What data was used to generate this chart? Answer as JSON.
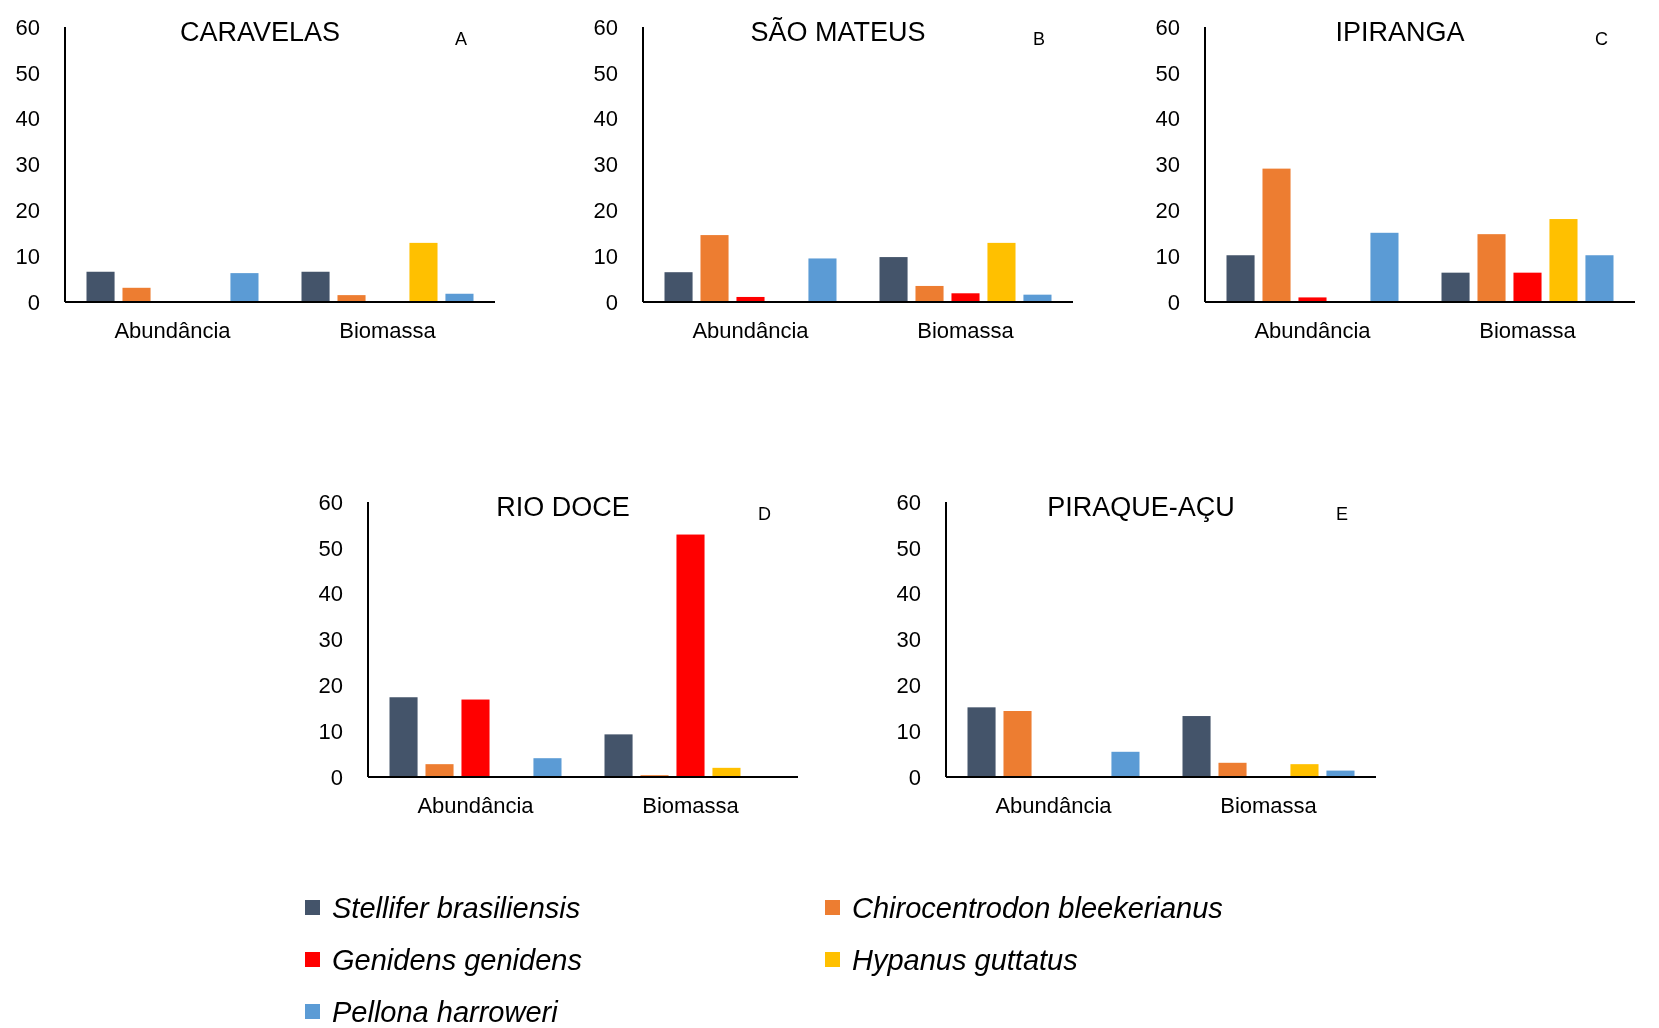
{
  "chart_data": [
    {
      "type": "bar",
      "title": "CARAVELAS",
      "annotations": [
        "A"
      ],
      "categories": [
        "Abundância",
        "Biomassa"
      ],
      "ylim": [
        0,
        60
      ],
      "yticks": [
        0,
        10,
        20,
        30,
        40,
        50,
        60
      ],
      "legend": "bottom",
      "series": [
        {
          "name": "Stellifer brasiliensis",
          "color": "#44546a",
          "values": [
            6.6,
            6.6
          ]
        },
        {
          "name": "Chirocentrodon bleekerianus",
          "color": "#ed7d31",
          "values": [
            3.1,
            1.5
          ]
        },
        {
          "name": "Genidens genidens",
          "color": "#ff0000",
          "values": [
            0,
            0
          ]
        },
        {
          "name": "Hypanus guttatus",
          "color": "#ffc000",
          "values": [
            0,
            12.9
          ]
        },
        {
          "name": "Pellona harroweri",
          "color": "#5b9bd5",
          "values": [
            6.3,
            1.8
          ]
        }
      ]
    },
    {
      "type": "bar",
      "title": "SÃO MATEUS",
      "annotations": [
        "B"
      ],
      "categories": [
        "Abundância",
        "Biomassa"
      ],
      "ylim": [
        0,
        60
      ],
      "yticks": [
        0,
        10,
        20,
        30,
        40,
        50,
        60
      ],
      "series": [
        {
          "color": "#44546a",
          "values": [
            6.5,
            9.8
          ]
        },
        {
          "color": "#ed7d31",
          "values": [
            14.6,
            3.5
          ]
        },
        {
          "color": "#ff0000",
          "values": [
            1.1,
            1.9
          ]
        },
        {
          "color": "#ffc000",
          "values": [
            0,
            12.9
          ]
        },
        {
          "color": "#5b9bd5",
          "values": [
            9.5,
            1.6
          ]
        }
      ]
    },
    {
      "type": "bar",
      "title": "IPIRANGA",
      "annotations": [
        "C"
      ],
      "categories": [
        "Abundância",
        "Biomassa"
      ],
      "ylim": [
        0,
        60
      ],
      "yticks": [
        0,
        10,
        20,
        30,
        40,
        50,
        60
      ],
      "series": [
        {
          "color": "#44546a",
          "values": [
            10.2,
            6.4
          ]
        },
        {
          "color": "#ed7d31",
          "values": [
            29.1,
            14.8
          ]
        },
        {
          "color": "#ff0000",
          "values": [
            1.0,
            6.4
          ]
        },
        {
          "color": "#ffc000",
          "values": [
            0,
            18.1
          ]
        },
        {
          "color": "#5b9bd5",
          "values": [
            15.1,
            10.2
          ]
        }
      ]
    },
    {
      "type": "bar",
      "title": "RIO DOCE",
      "annotations": [
        "D"
      ],
      "categories": [
        "Abundância",
        "Biomassa"
      ],
      "ylim": [
        0,
        60
      ],
      "yticks": [
        0,
        10,
        20,
        30,
        40,
        50,
        60
      ],
      "series": [
        {
          "color": "#44546a",
          "values": [
            17.4,
            9.3
          ]
        },
        {
          "color": "#ed7d31",
          "values": [
            2.8,
            0.4
          ]
        },
        {
          "color": "#ff0000",
          "values": [
            16.9,
            52.9
          ]
        },
        {
          "color": "#ffc000",
          "values": [
            0,
            2.0
          ]
        },
        {
          "color": "#5b9bd5",
          "values": [
            4.1,
            0
          ]
        }
      ]
    },
    {
      "type": "bar",
      "title": "PIRAQUE-AÇU",
      "annotations": [
        "E"
      ],
      "categories": [
        "Abundância",
        "Biomassa"
      ],
      "ylim": [
        0,
        60
      ],
      "yticks": [
        0,
        10,
        20,
        30,
        40,
        50,
        60
      ],
      "series": [
        {
          "color": "#44546a",
          "values": [
            15.2,
            13.3
          ]
        },
        {
          "color": "#ed7d31",
          "values": [
            14.4,
            3.1
          ]
        },
        {
          "color": "#ff0000",
          "values": [
            0,
            0
          ]
        },
        {
          "color": "#ffc000",
          "values": [
            0,
            2.8
          ]
        },
        {
          "color": "#5b9bd5",
          "values": [
            5.5,
            1.4
          ]
        }
      ]
    }
  ]
}
